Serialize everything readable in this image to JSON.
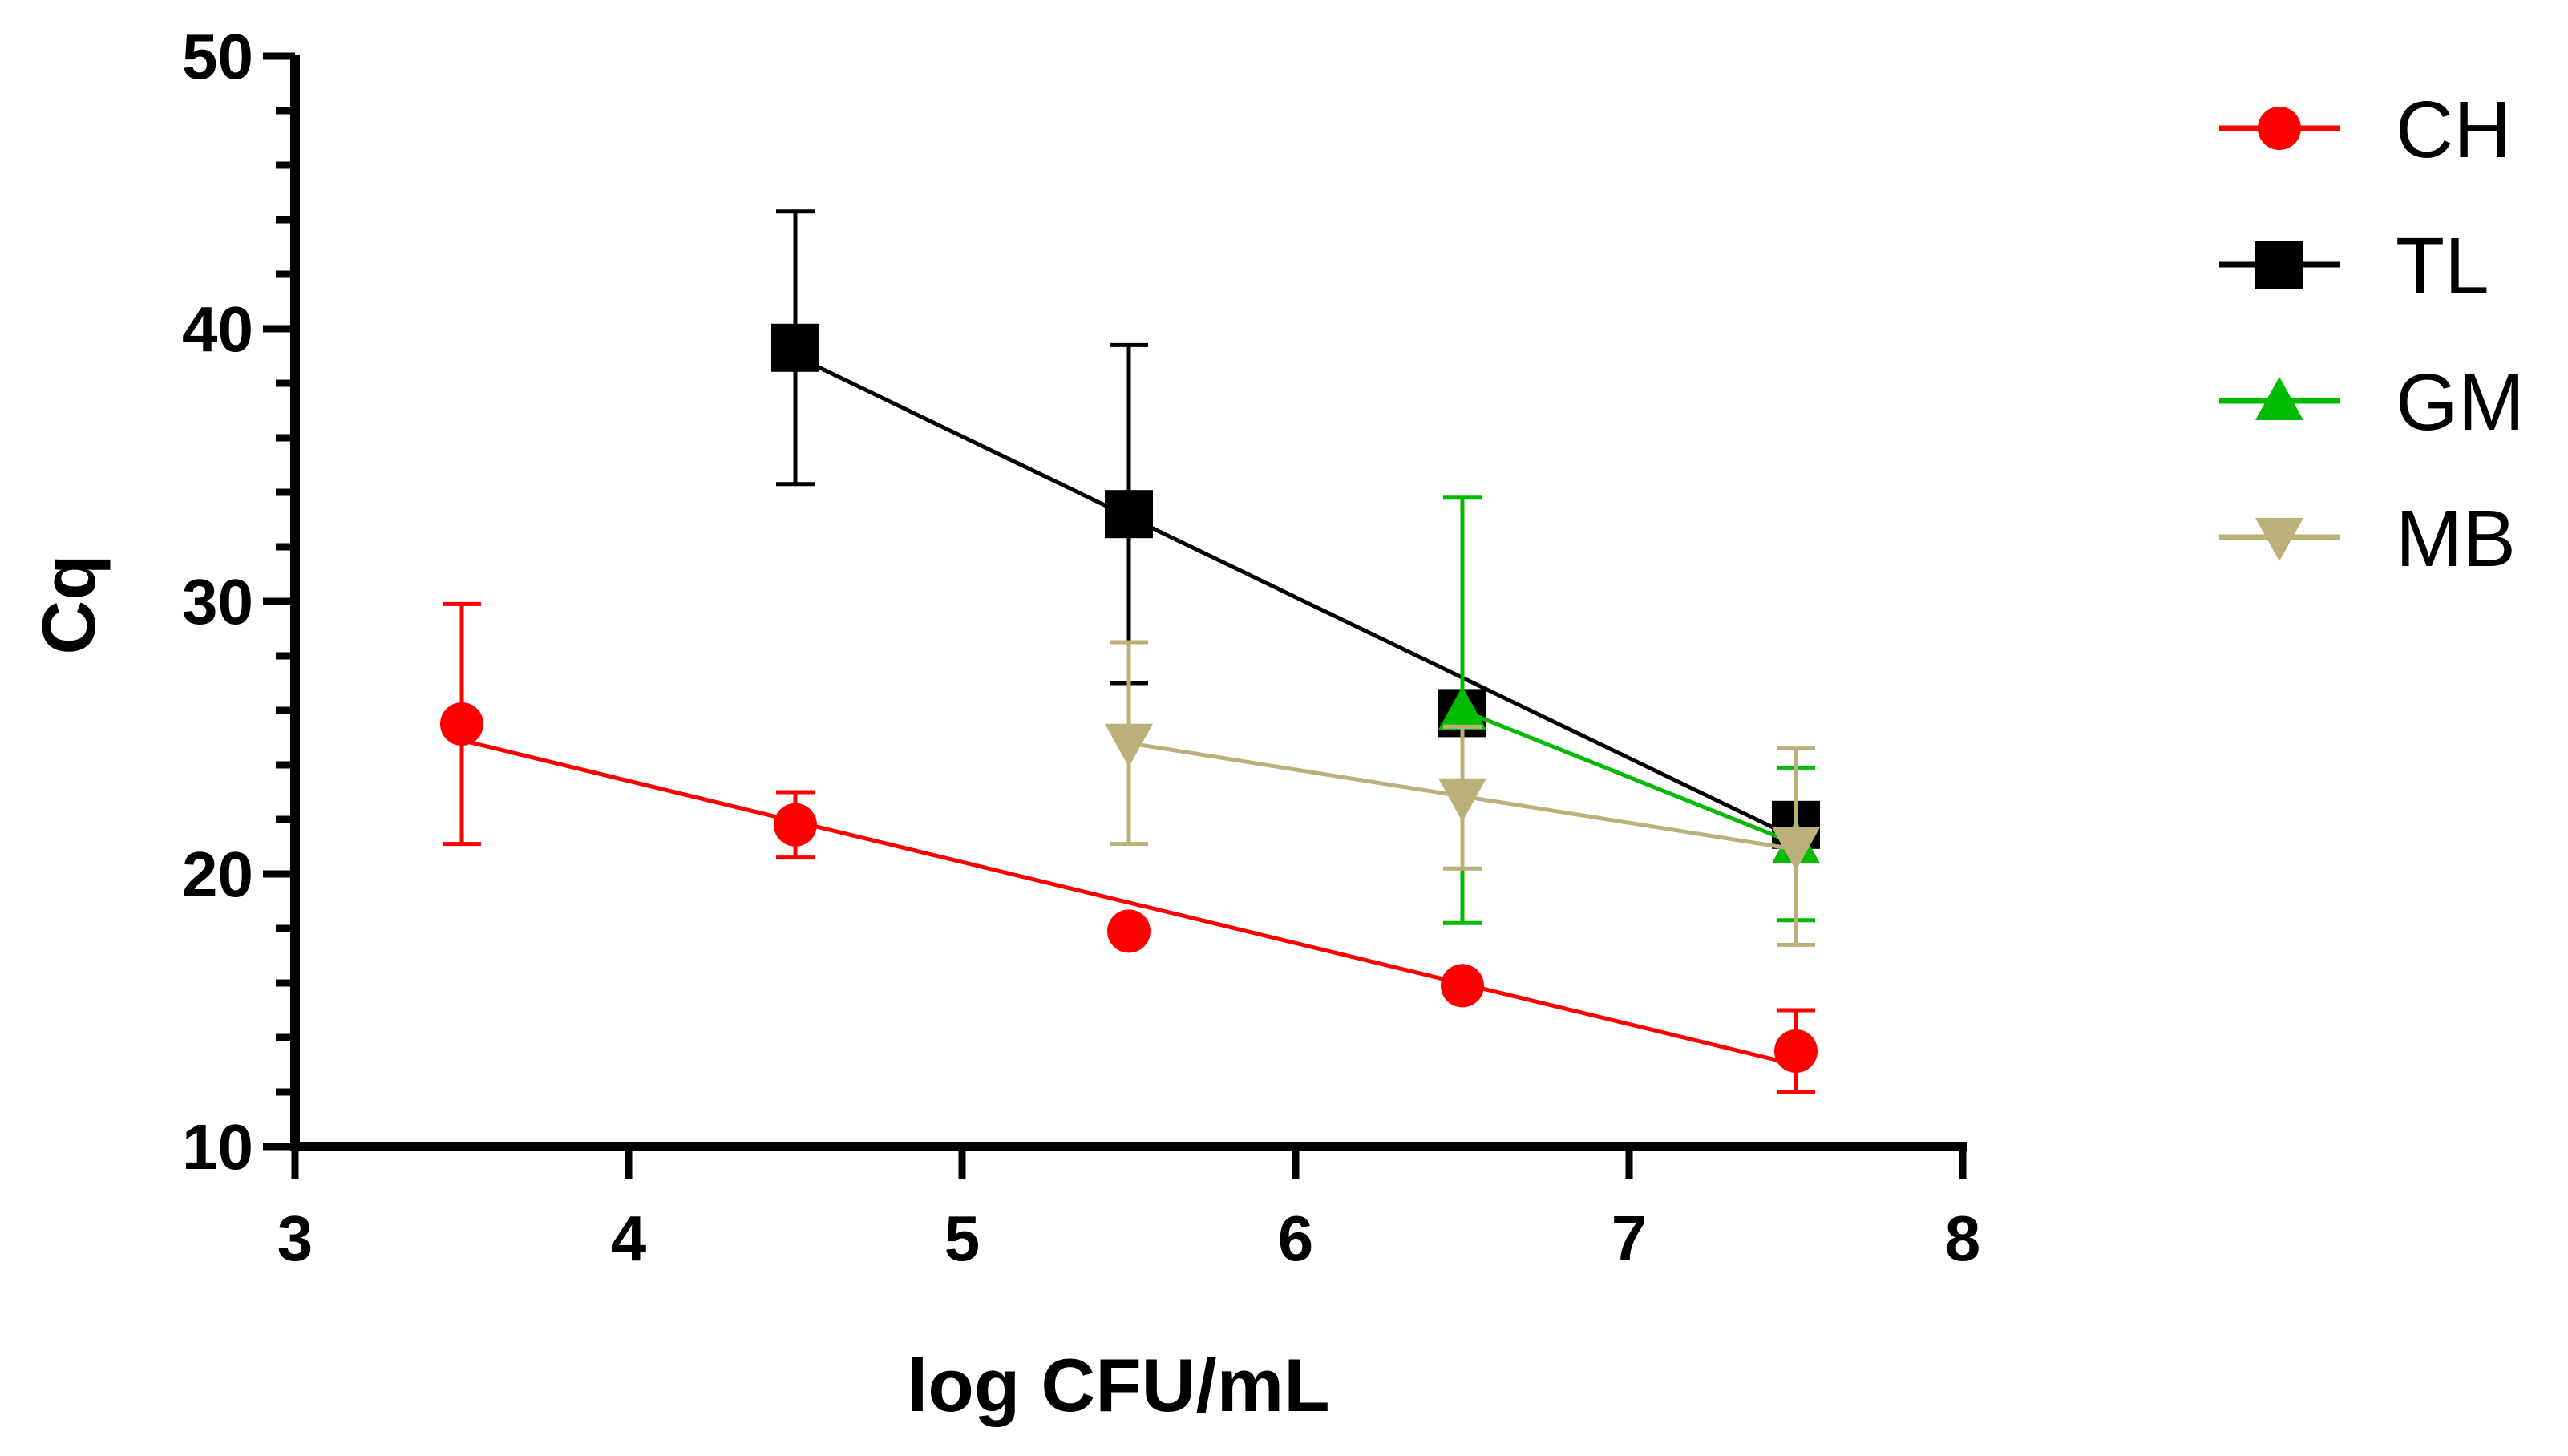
{
  "chart_data": {
    "type": "line",
    "xlabel": "log CFU/mL",
    "ylabel": "Cq",
    "xlim": [
      3,
      8
    ],
    "ylim": [
      10,
      50
    ],
    "x_ticks": [
      "3",
      "4",
      "5",
      "6",
      "7",
      "8"
    ],
    "y_ticks": [
      "10",
      "20",
      "30",
      "40",
      "50"
    ],
    "grid": false,
    "legend_position": "top-right outside",
    "series": [
      {
        "name": "CH",
        "color": "#ff0000",
        "marker": "circle",
        "points": [
          {
            "x": 3.5,
            "y": 25.5,
            "err": 4.4
          },
          {
            "x": 4.5,
            "y": 21.8,
            "err": 1.2
          },
          {
            "x": 5.5,
            "y": 17.9,
            "err": 0
          },
          {
            "x": 6.5,
            "y": 15.9,
            "err": 0
          },
          {
            "x": 7.5,
            "y": 13.5,
            "err": 1.5
          }
        ],
        "fit": [
          [
            3.5,
            24.9
          ],
          [
            7.5,
            13.0
          ]
        ]
      },
      {
        "name": "TL",
        "color": "#000000",
        "marker": "square",
        "points": [
          {
            "x": 4.5,
            "y": 39.3,
            "err": 5.0
          },
          {
            "x": 5.5,
            "y": 33.2,
            "err": 6.2
          },
          {
            "x": 6.5,
            "y": 25.9,
            "err": 0
          },
          {
            "x": 7.5,
            "y": 21.8,
            "err": 0
          }
        ],
        "fit": [
          [
            4.5,
            39.0
          ],
          [
            7.5,
            21.3
          ]
        ]
      },
      {
        "name": "GM",
        "color": "#00bb00",
        "marker": "triangle-up",
        "points": [
          {
            "x": 6.5,
            "y": 26.0,
            "err": 7.8
          },
          {
            "x": 7.5,
            "y": 21.1,
            "err": 2.8
          }
        ],
        "fit": [
          [
            6.5,
            26.0
          ],
          [
            7.5,
            21.1
          ]
        ]
      },
      {
        "name": "MB",
        "color": "#bcb07a",
        "marker": "triangle-down",
        "points": [
          {
            "x": 5.5,
            "y": 24.8,
            "err": 3.7
          },
          {
            "x": 6.5,
            "y": 22.8,
            "err": 2.6
          },
          {
            "x": 7.5,
            "y": 21.0,
            "err": 3.6
          }
        ],
        "fit": [
          [
            5.5,
            24.8
          ],
          [
            7.5,
            20.9
          ]
        ]
      }
    ]
  }
}
